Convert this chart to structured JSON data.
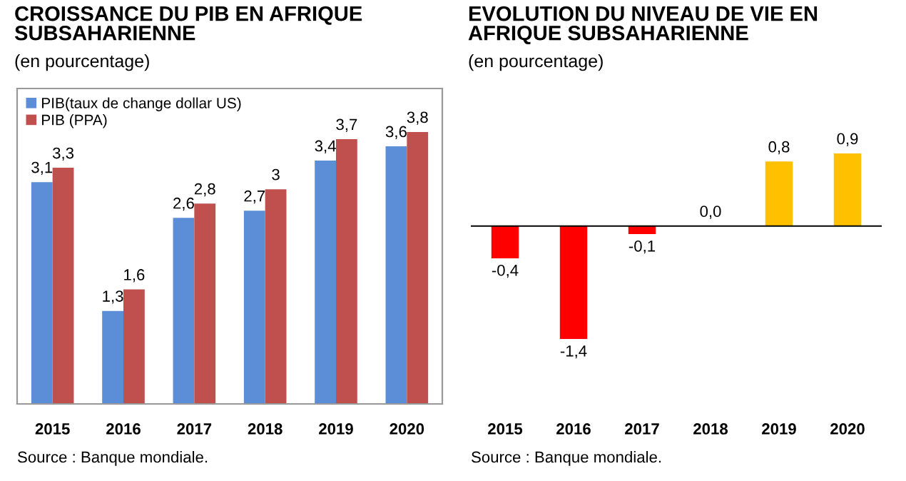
{
  "chart_data": [
    {
      "type": "bar",
      "title": "CROISSANCE DU PIB EN AFRIQUE\nSUBSAHARIENNE",
      "subtitle": "(en pourcentage)",
      "categories": [
        "2015",
        "2016",
        "2017",
        "2018",
        "2019",
        "2020"
      ],
      "series": [
        {
          "name": "PIB(taux de change dollar US)",
          "color": "#5b8ed6",
          "values": [
            3.1,
            1.3,
            2.6,
            2.7,
            3.4,
            3.6
          ],
          "value_labels": [
            "3,1",
            "1,3",
            "2,6",
            "2,7",
            "3,4",
            "3,6"
          ]
        },
        {
          "name": "PIB (PPA)",
          "color": "#c0504d",
          "values": [
            3.3,
            1.6,
            2.8,
            3,
            3.7,
            3.8
          ],
          "value_labels": [
            "3,3",
            "1,6",
            "2,8",
            "3",
            "3,7",
            "3,8"
          ]
        }
      ],
      "legend": "top left",
      "annotations": [
        "Source : Banque mondiale."
      ]
    },
    {
      "type": "bar",
      "title": "EVOLUTION DU NIVEAU DE VIE EN\nAFRIQUE SUBSAHARIENNE",
      "subtitle": "(en pourcentage)",
      "categories": [
        "2015",
        "2016",
        "2017",
        "2018",
        "2019",
        "2020"
      ],
      "values": [
        -0.4,
        -1.4,
        -0.1,
        0.0,
        0.8,
        0.9
      ],
      "colors": [
        "#ff0000",
        "#ff0000",
        "#ff0000",
        "#ff0000",
        "#ffc000",
        "#ffc000"
      ],
      "value_labels": [
        "-0,4",
        "-1,4",
        "-0,1",
        "0,0",
        "0,8",
        "0,9"
      ],
      "annotations": [
        "Source : Banque mondiale."
      ]
    }
  ]
}
